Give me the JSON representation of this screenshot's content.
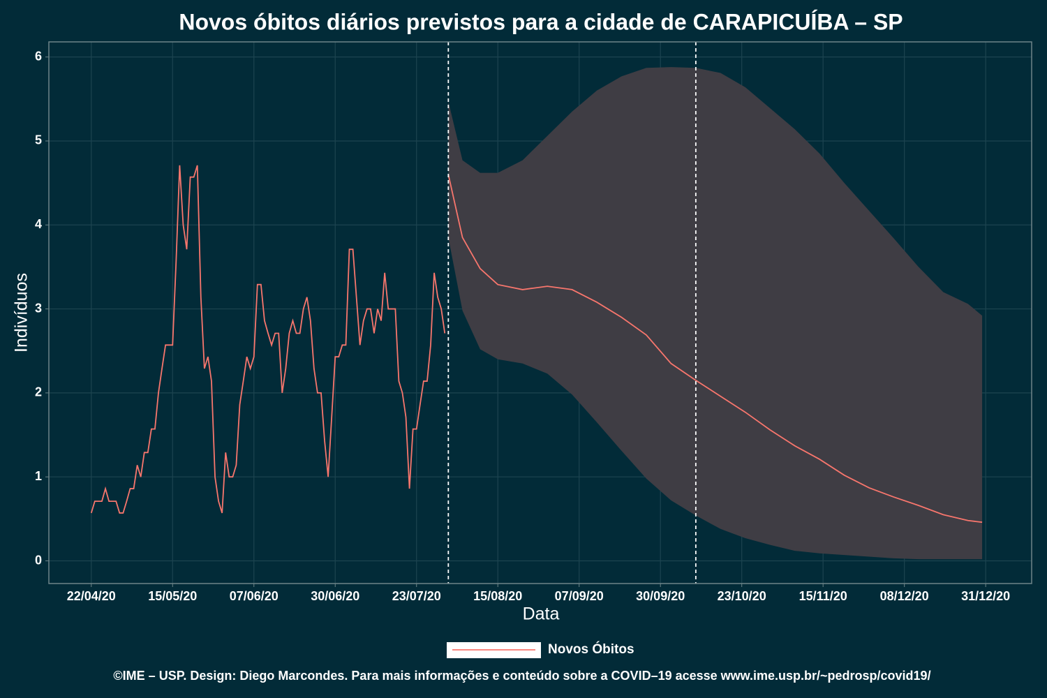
{
  "chart_data": {
    "type": "line",
    "title": "Novos óbitos diários previstos para a cidade de CARAPICUÍBA – SP",
    "x_label": "Data",
    "y_label": "Indivíduos",
    "caption": "©IME – USP. Design: Diego Marcondes. Para mais informações e conteúdo sobre a COVID–19 acesse www.ime.usp.br/~pedrosp/covid19/",
    "xlim": [
      "10/04/20",
      "13/01/21"
    ],
    "xticks": [
      "22/04/20",
      "15/05/20",
      "07/06/20",
      "30/06/20",
      "23/07/20",
      "15/08/20",
      "07/09/20",
      "30/09/20",
      "23/10/20",
      "15/11/20",
      "08/12/20",
      "31/12/20"
    ],
    "ylim": [
      -0.27,
      6.18
    ],
    "yticks": [
      0,
      1,
      2,
      3,
      4,
      5,
      6
    ],
    "grid": true,
    "legend": "bottom",
    "vlines": [
      "01/08/20",
      "10/10/20"
    ],
    "series": [
      {
        "name": "Novos Óbitos",
        "color": "#f8766d",
        "x": [
          "22/04/20",
          "23/04/20",
          "24/04/20",
          "25/04/20",
          "26/04/20",
          "27/04/20",
          "28/04/20",
          "29/04/20",
          "30/04/20",
          "01/05/20",
          "02/05/20",
          "03/05/20",
          "04/05/20",
          "05/05/20",
          "06/05/20",
          "07/05/20",
          "08/05/20",
          "09/05/20",
          "10/05/20",
          "11/05/20",
          "12/05/20",
          "13/05/20",
          "14/05/20",
          "15/05/20",
          "16/05/20",
          "17/05/20",
          "18/05/20",
          "19/05/20",
          "20/05/20",
          "21/05/20",
          "22/05/20",
          "23/05/20",
          "24/05/20",
          "25/05/20",
          "26/05/20",
          "27/05/20",
          "28/05/20",
          "29/05/20",
          "30/05/20",
          "31/05/20",
          "01/06/20",
          "02/06/20",
          "03/06/20",
          "04/06/20",
          "05/06/20",
          "06/06/20",
          "07/06/20",
          "08/06/20",
          "09/06/20",
          "10/06/20",
          "11/06/20",
          "12/06/20",
          "13/06/20",
          "14/06/20",
          "15/06/20",
          "16/06/20",
          "17/06/20",
          "18/06/20",
          "19/06/20",
          "20/06/20",
          "21/06/20",
          "22/06/20",
          "23/06/20",
          "24/06/20",
          "25/06/20",
          "26/06/20",
          "27/06/20",
          "28/06/20",
          "29/06/20",
          "30/06/20",
          "01/07/20",
          "02/07/20",
          "03/07/20",
          "04/07/20",
          "05/07/20",
          "06/07/20",
          "07/07/20",
          "08/07/20",
          "09/07/20",
          "10/07/20",
          "11/07/20",
          "12/07/20",
          "13/07/20",
          "14/07/20",
          "15/07/20",
          "16/07/20",
          "17/07/20",
          "18/07/20",
          "19/07/20",
          "20/07/20",
          "21/07/20",
          "22/07/20",
          "23/07/20",
          "24/07/20",
          "25/07/20",
          "26/07/20",
          "27/07/20",
          "28/07/20",
          "29/07/20",
          "30/07/20",
          "31/07/20"
        ],
        "values": [
          0.57,
          0.71,
          0.71,
          0.71,
          0.86,
          0.71,
          0.71,
          0.71,
          0.57,
          0.57,
          0.71,
          0.86,
          0.86,
          1.14,
          1.0,
          1.29,
          1.29,
          1.57,
          1.57,
          2.0,
          2.29,
          2.57,
          2.57,
          2.57,
          3.57,
          4.71,
          4.0,
          3.71,
          4.57,
          4.57,
          4.71,
          3.14,
          2.29,
          2.43,
          2.14,
          1.0,
          0.71,
          0.57,
          1.29,
          1.0,
          1.0,
          1.14,
          1.86,
          2.14,
          2.43,
          2.29,
          2.43,
          3.29,
          3.29,
          2.86,
          2.71,
          2.57,
          2.71,
          2.71,
          2.0,
          2.29,
          2.71,
          2.86,
          2.71,
          2.71,
          3.0,
          3.14,
          2.86,
          2.29,
          2.0,
          2.0,
          1.43,
          1.0,
          1.71,
          2.43,
          2.43,
          2.57,
          2.57,
          3.71,
          3.71,
          3.14,
          2.57,
          2.86,
          3.0,
          3.0,
          2.71,
          3.0,
          2.86,
          3.43,
          3.0,
          3.0,
          3.0,
          2.14,
          2.0,
          1.71,
          0.86,
          1.57,
          1.57,
          1.86,
          2.14,
          2.14,
          2.57,
          3.43,
          3.14,
          3.0,
          2.71
        ]
      }
    ],
    "forecast": {
      "color": "#3f3d44",
      "x": [
        "01/08/20",
        "05/08/20",
        "10/08/20",
        "15/08/20",
        "22/08/20",
        "29/08/20",
        "05/09/20",
        "12/09/20",
        "19/09/20",
        "26/09/20",
        "03/10/20",
        "10/10/20",
        "17/10/20",
        "24/10/20",
        "31/10/20",
        "07/11/20",
        "14/11/20",
        "21/11/20",
        "28/11/20",
        "05/12/20",
        "12/12/20",
        "19/12/20",
        "26/12/20",
        "30/12/20"
      ],
      "values": [
        4.6,
        3.85,
        3.48,
        3.29,
        3.23,
        3.27,
        3.23,
        3.08,
        2.9,
        2.69,
        2.35,
        2.15,
        1.96,
        1.77,
        1.56,
        1.37,
        1.21,
        1.02,
        0.87,
        0.76,
        0.66,
        0.55,
        0.48,
        0.46
      ],
      "lower": [
        3.85,
        2.98,
        2.52,
        2.4,
        2.35,
        2.23,
        1.98,
        1.65,
        1.31,
        0.98,
        0.72,
        0.54,
        0.38,
        0.27,
        0.19,
        0.12,
        0.09,
        0.07,
        0.05,
        0.03,
        0.02,
        0.02,
        0.02,
        0.02
      ],
      "upper": [
        5.47,
        4.77,
        4.62,
        4.62,
        4.77,
        5.06,
        5.35,
        5.6,
        5.77,
        5.87,
        5.88,
        5.87,
        5.81,
        5.64,
        5.39,
        5.14,
        4.85,
        4.5,
        4.17,
        3.84,
        3.5,
        3.2,
        3.06,
        2.92
      ]
    }
  }
}
